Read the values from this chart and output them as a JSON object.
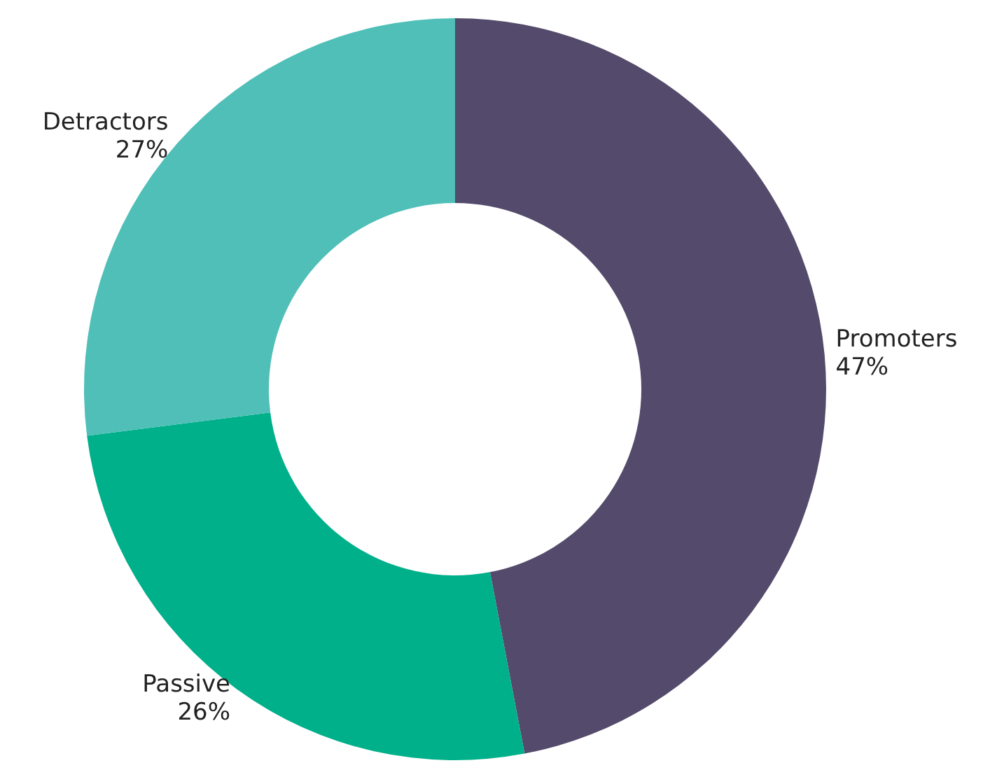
{
  "chart_data": {
    "type": "donut",
    "categories": [
      "Promoters",
      "Passive",
      "Detractors"
    ],
    "values": [
      47,
      26,
      27
    ],
    "colors": [
      "#544a6b",
      "#00b08a",
      "#4fbfb8"
    ],
    "value_labels": [
      "47%",
      "26%",
      "27%"
    ],
    "legend": false
  }
}
